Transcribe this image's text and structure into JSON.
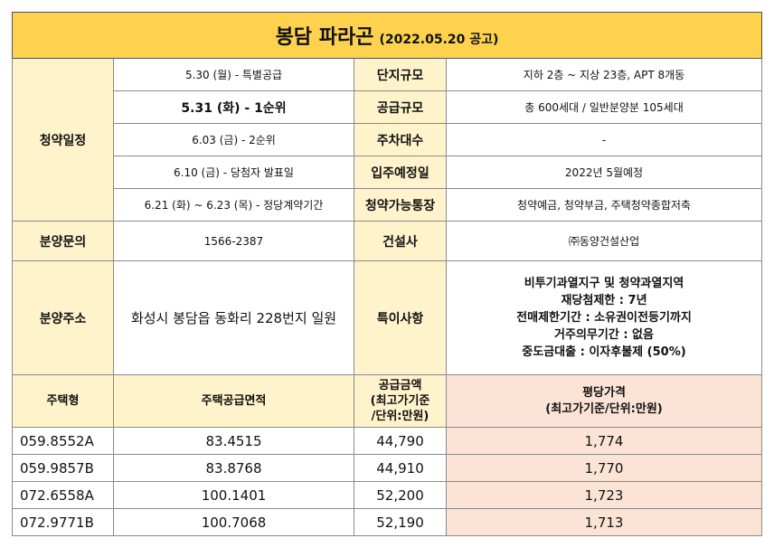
{
  "title": {
    "main": "봉담 파라곤",
    "sub": "(2022.05.20 공고)"
  },
  "schedule_label": "청약일정",
  "schedule": [
    "5.30 (월) - 특별공급",
    "5.31 (화) - 1순위",
    "6.03 (금) - 2순위",
    "6.10 (금) - 당첨자 발표일",
    "6.21 (화) ~ 6.23 (목) - 정당계약기간"
  ],
  "info": [
    {
      "label": "단지규모",
      "value": "지하 2층 ~ 지상 23층, APT 8개동"
    },
    {
      "label": "공급규모",
      "value": "총 600세대 / 일반분양분 105세대"
    },
    {
      "label": "주차대수",
      "value": "-"
    },
    {
      "label": "입주예정일",
      "value": "2022년 5월예정"
    },
    {
      "label": "청약가능통장",
      "value": "청약예금, 청약부금, 주택청약종합저축"
    }
  ],
  "inquiry": {
    "label": "분양문의",
    "value": "1566-2387"
  },
  "builder": {
    "label": "건설사",
    "value": "㈜동양건설산업"
  },
  "address": {
    "label": "분양주소",
    "value": "화성시 봉담읍 동화리 228번지 일원"
  },
  "special": {
    "label": "특이사항",
    "lines": [
      "비투기과열지구 및 청약과열지역",
      "재당첨제한 : 7년",
      "전매제한기간 : 소유권이전등기까지",
      "거주의무기간 : 없음",
      "중도금대출 : 이자후불제 (50%)"
    ]
  },
  "units_header": {
    "type": "주택형",
    "area": "주택공급면적",
    "price": [
      "공급금액",
      "(최고가기준",
      "/단위:만원)"
    ],
    "pyeong": [
      "평당가격",
      "(최고가기준/단위:만원)"
    ]
  },
  "units": [
    {
      "type": "059.8552A",
      "area": "83.4515",
      "price": "44,790",
      "pyeong": "1,774"
    },
    {
      "type": "059.9857B",
      "area": "83.8768",
      "price": "44,910",
      "pyeong": "1,770"
    },
    {
      "type": "072.6558A",
      "area": "100.1401",
      "price": "52,200",
      "pyeong": "1,723"
    },
    {
      "type": "072.9771B",
      "area": "100.7068",
      "price": "52,190",
      "pyeong": "1,713"
    }
  ]
}
